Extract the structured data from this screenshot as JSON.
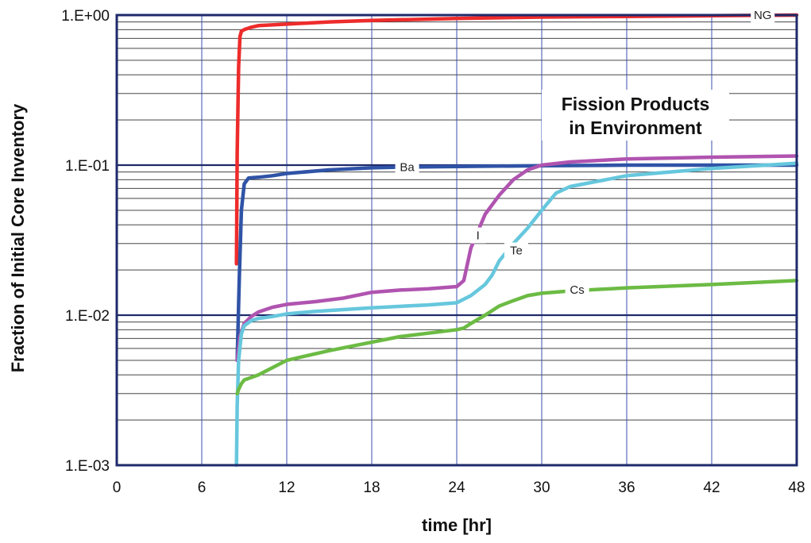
{
  "chart_data": {
    "type": "line",
    "title": "",
    "xlabel": "time [hr]",
    "ylabel": "Fraction of Initial Core Inventory",
    "xlim": [
      0,
      48
    ],
    "ylim": [
      0.001,
      1.0
    ],
    "yscale": "log",
    "grid": true,
    "legend": "none",
    "x_ticks": [
      "0",
      "6",
      "12",
      "18",
      "24",
      "30",
      "36",
      "42",
      "48"
    ],
    "y_ticks": [
      "1.E-03",
      "1.E-02",
      "1.E-01",
      "1.E+00"
    ],
    "annotation": [
      "Fission Products",
      "in Environment"
    ],
    "series": [
      {
        "name": "NG",
        "color": "#ee2b2b",
        "x": [
          8.45,
          8.5,
          8.6,
          8.7,
          8.8,
          9.0,
          9.5,
          10,
          12,
          15,
          18,
          24,
          30,
          36,
          42,
          48
        ],
        "y": [
          0.022,
          0.12,
          0.45,
          0.72,
          0.78,
          0.8,
          0.83,
          0.85,
          0.87,
          0.9,
          0.92,
          0.95,
          0.97,
          0.98,
          0.99,
          1.0
        ]
      },
      {
        "name": "Ba",
        "color": "#2f53a6",
        "x": [
          8.5,
          8.65,
          8.8,
          9.0,
          9.3,
          10,
          11,
          12,
          15,
          18,
          20,
          24,
          30,
          36,
          42,
          48
        ],
        "y": [
          0.005,
          0.018,
          0.05,
          0.075,
          0.082,
          0.083,
          0.085,
          0.088,
          0.093,
          0.096,
          0.097,
          0.098,
          0.099,
          0.1,
          0.1,
          0.1
        ]
      },
      {
        "name": "I",
        "color": "#b054b0",
        "x": [
          8.5,
          8.7,
          9.0,
          9.5,
          10,
          11,
          12,
          14,
          16,
          18,
          20,
          22,
          24,
          24.5,
          25,
          26,
          27,
          28,
          29,
          30,
          32,
          36,
          42,
          48
        ],
        "y": [
          0.005,
          0.0072,
          0.0088,
          0.0098,
          0.0105,
          0.0113,
          0.0118,
          0.0123,
          0.013,
          0.0142,
          0.0147,
          0.015,
          0.0155,
          0.017,
          0.028,
          0.047,
          0.063,
          0.08,
          0.093,
          0.1,
          0.105,
          0.11,
          0.113,
          0.115
        ]
      },
      {
        "name": "Te",
        "color": "#66c7dd",
        "x": [
          8.45,
          8.5,
          8.6,
          8.8,
          9.0,
          9.5,
          10,
          11,
          12,
          14,
          18,
          22,
          24,
          25,
          26,
          26.5,
          27,
          28,
          29,
          30,
          31,
          32,
          36,
          42,
          48
        ],
        "y": [
          0.001,
          0.0025,
          0.005,
          0.0075,
          0.0085,
          0.0092,
          0.0095,
          0.0098,
          0.0102,
          0.0106,
          0.0112,
          0.0117,
          0.0121,
          0.0135,
          0.016,
          0.0185,
          0.023,
          0.03,
          0.038,
          0.05,
          0.065,
          0.072,
          0.085,
          0.095,
          0.103
        ]
      },
      {
        "name": "Cs",
        "color": "#6cbb44",
        "x": [
          8.5,
          8.6,
          8.8,
          9.0,
          10,
          12,
          15,
          18,
          20,
          24,
          24.5,
          25,
          26,
          27,
          28,
          29,
          30,
          32,
          36,
          42,
          48
        ],
        "y": [
          0.003,
          0.0032,
          0.0035,
          0.0037,
          0.004,
          0.005,
          0.0058,
          0.0066,
          0.0072,
          0.008,
          0.0082,
          0.0088,
          0.01,
          0.0115,
          0.0125,
          0.0135,
          0.014,
          0.0145,
          0.0152,
          0.016,
          0.017
        ]
      }
    ]
  }
}
